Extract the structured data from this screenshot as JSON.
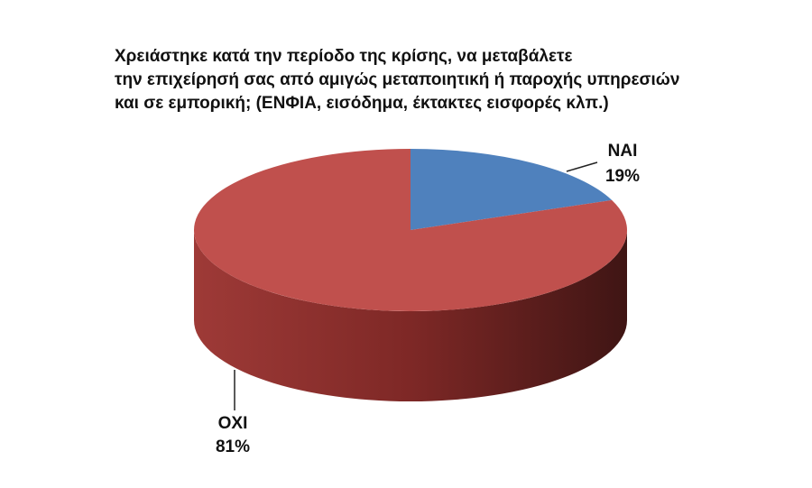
{
  "chart_data": {
    "type": "pie",
    "title": [
      "Χρειάστηκε κατά την περίοδο της κρίσης, να μεταβάλετε",
      "την επιχείρησή σας από αμιγώς μεταποιητική ή παροχής υπηρεσιών",
      "και σε εμπορική; (ΕΝΦΙΑ, εισόδημα, έκτακτες εισφορές κλπ.)"
    ],
    "categories": [
      "ΝΑΙ",
      "ΟΧΙ"
    ],
    "values": [
      19,
      81
    ],
    "value_labels": [
      "19%",
      "81%"
    ],
    "colors": [
      "#4f81bd",
      "#c0504d"
    ]
  }
}
